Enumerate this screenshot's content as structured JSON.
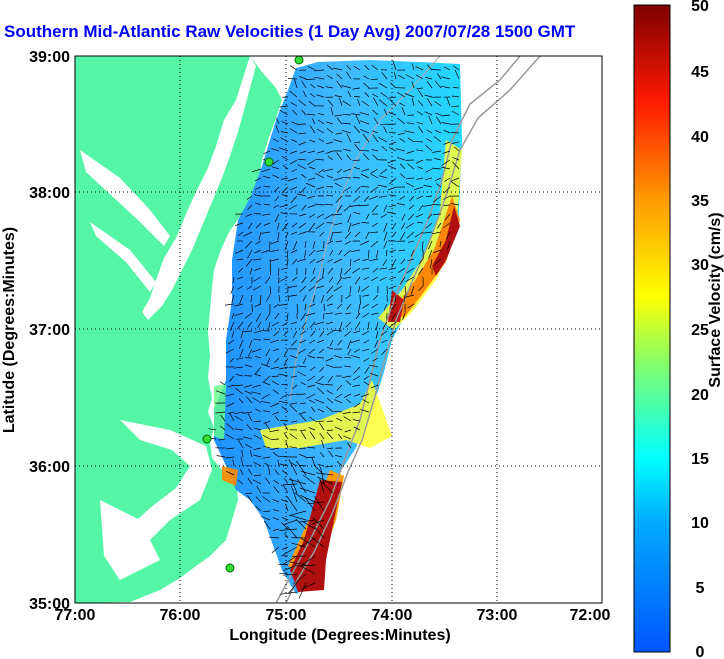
{
  "title": "Southern Mid-Atlantic Raw Velocities (1 Day Avg) 2007/07/28 1500 GMT",
  "map": {
    "xlabel": "Longitude (Degrees:Minutes)",
    "ylabel": "Latitude (Degrees:Minutes)",
    "x_ticks": [
      "77:00",
      "76:00",
      "75:00",
      "74:00",
      "73:00",
      "72:00"
    ],
    "y_ticks": [
      "39:00",
      "38:00",
      "37:00",
      "36:00",
      "35:00"
    ],
    "land_color": "#55f5a8",
    "coast_color": "#ffffff"
  },
  "colorbar": {
    "label": "Surface Velocity (cm/s)",
    "ticks": [
      "50",
      "45",
      "40",
      "35",
      "30",
      "25",
      "20",
      "15",
      "10",
      "5",
      "0"
    ],
    "min": 0,
    "max": 50
  }
}
